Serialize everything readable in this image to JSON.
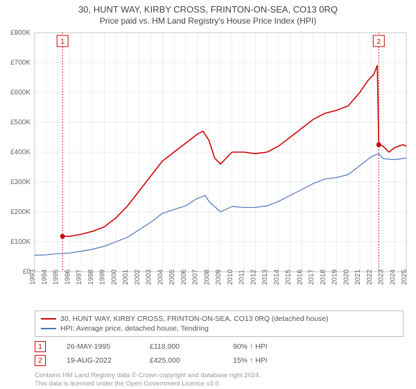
{
  "title_main": "30, HUNT WAY, KIRBY CROSS, FRINTON-ON-SEA, CO13 0RQ",
  "title_sub": "Price paid vs. HM Land Registry's House Price Index (HPI)",
  "chart": {
    "type": "line",
    "background_color": "#ffffff",
    "grid_color": "#dddddd",
    "axis_color": "#888888",
    "x_start_year": 1993,
    "x_end_year": 2025,
    "ylim": [
      0,
      800000
    ],
    "ytick_step": 100000,
    "y_ticks": [
      "£0",
      "£100K",
      "£200K",
      "£300K",
      "£400K",
      "£500K",
      "£600K",
      "£700K",
      "£800K"
    ],
    "x_ticks": [
      "1993",
      "1994",
      "1995",
      "1996",
      "1997",
      "1998",
      "1999",
      "2000",
      "2001",
      "2002",
      "2003",
      "2004",
      "2005",
      "2006",
      "2007",
      "2008",
      "2009",
      "2010",
      "2011",
      "2012",
      "2013",
      "2014",
      "2015",
      "2016",
      "2017",
      "2018",
      "2019",
      "2020",
      "2021",
      "2022",
      "2023",
      "2024",
      "2025"
    ],
    "series": [
      {
        "name": "property",
        "color": "#cc0000",
        "width": 1.6,
        "points": [
          [
            1995.4,
            118000
          ],
          [
            1996,
            118000
          ],
          [
            1997,
            125000
          ],
          [
            1998,
            135000
          ],
          [
            1999,
            150000
          ],
          [
            2000,
            180000
          ],
          [
            2001,
            220000
          ],
          [
            2002,
            270000
          ],
          [
            2003,
            320000
          ],
          [
            2004,
            370000
          ],
          [
            2005,
            400000
          ],
          [
            2006,
            430000
          ],
          [
            2007,
            460000
          ],
          [
            2007.5,
            470000
          ],
          [
            2008,
            440000
          ],
          [
            2008.5,
            380000
          ],
          [
            2009,
            360000
          ],
          [
            2010,
            400000
          ],
          [
            2011,
            400000
          ],
          [
            2012,
            395000
          ],
          [
            2013,
            400000
          ],
          [
            2014,
            420000
          ],
          [
            2015,
            450000
          ],
          [
            2016,
            480000
          ],
          [
            2017,
            510000
          ],
          [
            2018,
            530000
          ],
          [
            2019,
            540000
          ],
          [
            2020,
            555000
          ],
          [
            2021,
            600000
          ],
          [
            2021.7,
            640000
          ],
          [
            2022.2,
            660000
          ],
          [
            2022.5,
            690000
          ],
          [
            2022.63,
            425000
          ],
          [
            2023,
            420000
          ],
          [
            2023.5,
            400000
          ],
          [
            2024,
            415000
          ],
          [
            2024.7,
            425000
          ],
          [
            2025,
            420000
          ]
        ]
      },
      {
        "name": "hpi",
        "color": "#4a72b8",
        "width": 1.2,
        "points": [
          [
            1993,
            55000
          ],
          [
            1994,
            56000
          ],
          [
            1995,
            60000
          ],
          [
            1996,
            62000
          ],
          [
            1997,
            68000
          ],
          [
            1998,
            75000
          ],
          [
            1999,
            85000
          ],
          [
            2000,
            100000
          ],
          [
            2001,
            115000
          ],
          [
            2002,
            140000
          ],
          [
            2003,
            165000
          ],
          [
            2004,
            195000
          ],
          [
            2005,
            208000
          ],
          [
            2006,
            220000
          ],
          [
            2007,
            245000
          ],
          [
            2007.7,
            255000
          ],
          [
            2008,
            235000
          ],
          [
            2009,
            200000
          ],
          [
            2010,
            218000
          ],
          [
            2011,
            215000
          ],
          [
            2012,
            215000
          ],
          [
            2013,
            220000
          ],
          [
            2014,
            235000
          ],
          [
            2015,
            255000
          ],
          [
            2016,
            275000
          ],
          [
            2017,
            295000
          ],
          [
            2018,
            310000
          ],
          [
            2019,
            315000
          ],
          [
            2020,
            325000
          ],
          [
            2021,
            355000
          ],
          [
            2022,
            385000
          ],
          [
            2022.63,
            395000
          ],
          [
            2023,
            378000
          ],
          [
            2024,
            375000
          ],
          [
            2025,
            380000
          ]
        ]
      }
    ],
    "markers": [
      {
        "n": "1",
        "year": 1995.4,
        "dot_y": 118000,
        "color": "#cc0000"
      },
      {
        "n": "2",
        "year": 2022.63,
        "dot_y": 425000,
        "color": "#cc0000"
      }
    ]
  },
  "legend": {
    "items": [
      {
        "color": "#cc0000",
        "label": "30, HUNT WAY, KIRBY CROSS, FRINTON-ON-SEA, CO13 0RQ (detached house)"
      },
      {
        "color": "#4a72b8",
        "label": "HPI: Average price, detached house, Tendring"
      }
    ]
  },
  "marker_table": [
    {
      "n": "1",
      "date": "26-MAY-1995",
      "price": "£118,000",
      "delta": "90% ↑ HPI"
    },
    {
      "n": "2",
      "date": "19-AUG-2022",
      "price": "£425,000",
      "delta": "15% ↑ HPI"
    }
  ],
  "footer_lines": [
    "Contains HM Land Registry data © Crown copyright and database right 2024.",
    "This data is licensed under the Open Government Licence v3.0."
  ]
}
